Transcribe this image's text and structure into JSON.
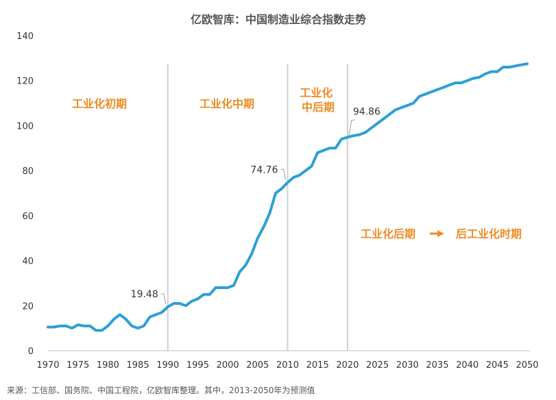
{
  "chart_data": {
    "type": "line",
    "title": "亿欧智库：中国制造业综合指数走势",
    "xlabel": "",
    "ylabel": "",
    "xlim": [
      1970,
      2050
    ],
    "ylim": [
      0,
      140
    ],
    "x_ticks": [
      1970,
      1975,
      1980,
      1985,
      1990,
      1995,
      2000,
      2005,
      2010,
      2015,
      2020,
      2025,
      2030,
      2035,
      2040,
      2045,
      2050
    ],
    "y_ticks": [
      0,
      20,
      40,
      60,
      80,
      100,
      120,
      140
    ],
    "grid": false,
    "legend": "none",
    "line_color": "#2e9fd6",
    "divider_color": "#cfcfcf",
    "dividers": [
      1990,
      2010,
      2020
    ],
    "series": [
      {
        "x": [
          1970,
          1971,
          1972,
          1973,
          1974,
          1975,
          1976,
          1977,
          1978,
          1979,
          1980,
          1981,
          1982,
          1983,
          1984,
          1985,
          1986,
          1987,
          1988,
          1989,
          1990,
          1991,
          1992,
          1993,
          1994,
          1995,
          1996,
          1997,
          1998,
          1999,
          2000,
          2001,
          2002,
          2003,
          2004,
          2005,
          2006,
          2007,
          2008,
          2009,
          2010,
          2011,
          2012,
          2013,
          2014,
          2015,
          2016,
          2017,
          2018,
          2019,
          2020,
          2021,
          2022,
          2023,
          2024,
          2025,
          2026,
          2027,
          2028,
          2029,
          2030,
          2031,
          2032,
          2033,
          2034,
          2035,
          2036,
          2037,
          2038,
          2039,
          2040,
          2041,
          2042,
          2043,
          2044,
          2045,
          2046,
          2047,
          2048,
          2049,
          2050
        ],
        "y": [
          10.5,
          10.5,
          11,
          11,
          10,
          11.5,
          11,
          11,
          9,
          9,
          11,
          14,
          16,
          14,
          11,
          10,
          11,
          15,
          16,
          17,
          19.48,
          21,
          21,
          20,
          22,
          23,
          25,
          25,
          28,
          28,
          28,
          29,
          35,
          38,
          43,
          50,
          55,
          61,
          70,
          72,
          74.76,
          77,
          78,
          80,
          82,
          88,
          89,
          90,
          90,
          94,
          94.86,
          95.5,
          96,
          97,
          99,
          101,
          103,
          105,
          107,
          108,
          109,
          110,
          113,
          114,
          115,
          116,
          117,
          118,
          119,
          119,
          120,
          121,
          121.5,
          123,
          124,
          124,
          126,
          126,
          126.5,
          127,
          127.5
        ]
      }
    ],
    "callouts": [
      {
        "x": 1990,
        "y": 19.48,
        "label": "19.48"
      },
      {
        "x": 2010,
        "y": 74.76,
        "label": "74.76"
      },
      {
        "x": 2020,
        "y": 94.86,
        "label": "94.86"
      }
    ],
    "phase_labels": [
      {
        "lines": [
          "工业化初期"
        ]
      },
      {
        "lines": [
          "工业化中期"
        ]
      },
      {
        "lines": [
          "工业化",
          "中后期"
        ]
      },
      {
        "lines": [
          "工业化后期",
          "后工业化时期"
        ]
      }
    ],
    "source_note": "来源：工信部、国务院、中国工程院，亿欧智库整理。其中，2013-2050年为预测值"
  }
}
